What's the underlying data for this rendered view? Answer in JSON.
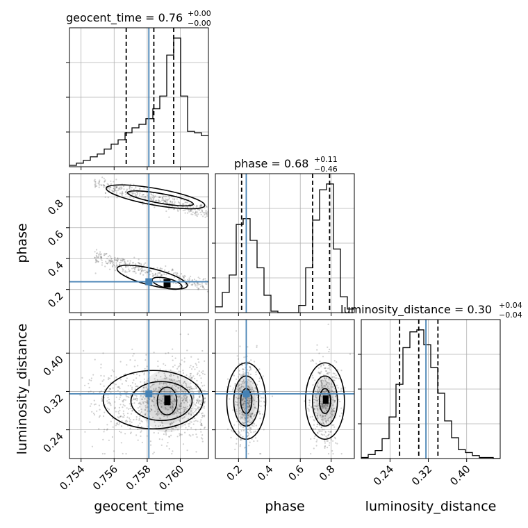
{
  "colors": {
    "truth": "#4682b4",
    "hist": "#000000",
    "grid": "#b0b0b0",
    "scatter": "#555555"
  },
  "chart_data": {
    "type": "corner",
    "parameters": [
      "geocent_time",
      "phase",
      "luminosity_distance"
    ],
    "truths": {
      "geocent_time": 0.7581,
      "phase": 0.25,
      "luminosity_distance": 0.315
    },
    "titles": [
      {
        "param": "geocent_time",
        "label": "geocent_time",
        "median": "0.76",
        "plus": "+0.00",
        "minus": "−0.00"
      },
      {
        "param": "phase",
        "label": "phase",
        "median": "0.68",
        "plus": "+0.11",
        "minus": "−0.46"
      },
      {
        "param": "luminosity_distance",
        "label": "luminosity_distance",
        "median": "0.30",
        "plus": "+0.04",
        "minus": "−0.04"
      }
    ],
    "axes": {
      "geocent_time": {
        "range": [
          0.7533,
          0.7617
        ],
        "ticks": [
          0.754,
          0.756,
          0.758,
          0.76
        ],
        "tick_labels": [
          "0.754",
          "0.756",
          "0.758",
          "0.760"
        ]
      },
      "phase": {
        "range": [
          0.05,
          0.95
        ],
        "ticks": [
          0.2,
          0.4,
          0.6,
          0.8
        ],
        "tick_labels": [
          "0.2",
          "0.4",
          "0.6",
          "0.8"
        ]
      },
      "luminosity_distance": {
        "range": [
          0.18,
          0.47
        ],
        "ticks": [
          0.24,
          0.32,
          0.4
        ],
        "tick_labels": [
          "0.24",
          "0.32",
          "0.40"
        ]
      }
    },
    "grid": true,
    "histograms": {
      "geocent_time": {
        "edges": [
          0.7533,
          0.75372,
          0.75414,
          0.75456,
          0.75498,
          0.7554,
          0.75582,
          0.75624,
          0.75666,
          0.75708,
          0.7575,
          0.75792,
          0.75834,
          0.75876,
          0.75918,
          0.7596,
          0.76002,
          0.76044,
          0.76086,
          0.76128,
          0.7617
        ],
        "counts": [
          2,
          5,
          9,
          14,
          18,
          25,
          32,
          38,
          48,
          55,
          60,
          68,
          82,
          100,
          158,
          182,
          100,
          50,
          48,
          44
        ]
      },
      "phase": {
        "edges": [
          0.05,
          0.095,
          0.14,
          0.185,
          0.23,
          0.275,
          0.32,
          0.365,
          0.41,
          0.455,
          0.5,
          0.545,
          0.59,
          0.635,
          0.68,
          0.725,
          0.77,
          0.815,
          0.86,
          0.905,
          0.95
        ],
        "counts": [
          8,
          28,
          52,
          122,
          130,
          100,
          62,
          24,
          2,
          0,
          0,
          0,
          10,
          62,
          128,
          170,
          178,
          88,
          22,
          5
        ]
      },
      "luminosity_distance": {
        "edges": [
          0.18,
          0.1945,
          0.209,
          0.2235,
          0.238,
          0.2525,
          0.267,
          0.2815,
          0.296,
          0.3105,
          0.325,
          0.3395,
          0.354,
          0.3685,
          0.383,
          0.3975,
          0.412,
          0.4265,
          0.441,
          0.4555,
          0.47
        ],
        "counts": [
          1,
          4,
          8,
          20,
          42,
          75,
          112,
          128,
          130,
          115,
          92,
          66,
          38,
          21,
          9,
          6,
          3,
          1,
          1,
          0
        ]
      }
    },
    "quantile_lines": {
      "geocent_time": [
        0.75673,
        0.7584,
        0.7596
      ],
      "phase": [
        0.22,
        0.68,
        0.79
      ],
      "luminosity_distance": [
        0.26,
        0.3,
        0.34
      ]
    },
    "contour_levels": [
      "0.5σ",
      "1σ",
      "1.5σ",
      "2σ"
    ]
  }
}
